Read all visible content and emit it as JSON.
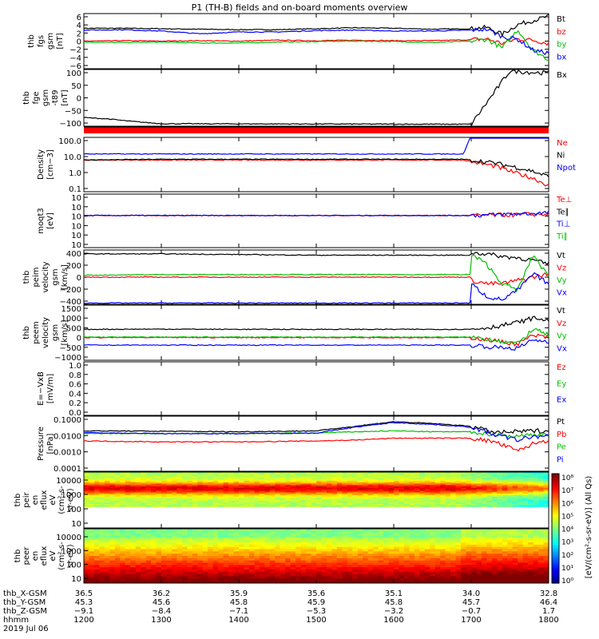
{
  "title": "P1 (TH-B) fields and on-board moments overview",
  "chart_data": [
    {
      "type": "line",
      "ylabel": [
        "thb",
        "fgs",
        "gsm",
        "[nT]"
      ],
      "yticks": [
        "6",
        "4",
        "2",
        "0",
        "−2",
        "−4",
        "−6"
      ],
      "ylim": [
        -6,
        6
      ],
      "legend": [
        {
          "name": "Bt",
          "color": "#000000"
        },
        {
          "name": "bz",
          "color": "#ff0000"
        },
        {
          "name": "by",
          "color": "#00c000"
        },
        {
          "name": "bx",
          "color": "#0000ff"
        }
      ],
      "x": [
        0,
        0.5,
        1,
        1.5,
        2,
        2.5,
        3,
        3.5,
        4,
        4.5,
        5,
        5.2,
        5.4,
        5.6,
        5.8,
        6
      ],
      "series": [
        {
          "name": "Bt",
          "values": [
            2.8,
            2.8,
            2.7,
            2.6,
            2.5,
            2.5,
            2.7,
            2.9,
            2.8,
            2.6,
            2.7,
            3.0,
            1.5,
            3.6,
            4.5,
            5.4
          ]
        },
        {
          "name": "bz",
          "values": [
            0.0,
            0.1,
            0.0,
            0.1,
            0.0,
            0.2,
            0.1,
            0.2,
            0.1,
            0.1,
            0.3,
            0.5,
            -0.5,
            0.5,
            0.2,
            -0.5
          ]
        },
        {
          "name": "by",
          "values": [
            -0.2,
            -0.3,
            -0.2,
            -0.4,
            -0.4,
            -0.2,
            -0.1,
            0.0,
            -0.1,
            -0.3,
            0.0,
            0.4,
            -1.5,
            2.5,
            -2.0,
            -4.0
          ]
        },
        {
          "name": "bx",
          "values": [
            2.4,
            2.5,
            2.2,
            1.6,
            2.0,
            2.0,
            2.3,
            2.4,
            2.2,
            2.2,
            2.4,
            2.6,
            1.0,
            0.4,
            -2.0,
            -2.6
          ]
        }
      ]
    },
    {
      "type": "line",
      "ylabel": [
        "thb",
        "fge",
        "gsm",
        "-t89",
        "[nT]"
      ],
      "yticks": [
        "100",
        "50",
        "0",
        "−50",
        "−100"
      ],
      "ylim": [
        -130,
        100
      ],
      "legend": [
        {
          "name": "Bx",
          "color": "#000000"
        }
      ],
      "x": [
        0,
        0.3,
        0.6,
        1.0,
        5.0,
        5.5,
        5.8,
        6
      ],
      "series": [
        {
          "name": "Bx",
          "values": [
            -95,
            -100,
            -110,
            -120,
            -122,
            95,
            88,
            86
          ]
        }
      ]
    },
    {
      "type": "line",
      "ylabel": [
        "Density",
        "[cm−3]"
      ],
      "yticks": [
        "100.0",
        "10.0",
        "1.0",
        "0.1"
      ],
      "ylim": [
        -1.3,
        2.3
      ],
      "scale": "log",
      "legend": [
        {
          "name": "Ne",
          "color": "#ff0000"
        },
        {
          "name": "Ni",
          "color": "#000000"
        },
        {
          "name": "Npot",
          "color": "#0000ff"
        },
        {
          "name": "",
          "color": "#000000"
        }
      ],
      "x": [
        0,
        1,
        2,
        3,
        4,
        4.9,
        5.0,
        5.3,
        5.6,
        5.8,
        6
      ],
      "series": [
        {
          "name": "Ne",
          "values": [
            0.8,
            0.8,
            0.8,
            0.8,
            0.8,
            0.8,
            0.7,
            0.4,
            -0.1,
            -0.4,
            -0.9
          ]
        },
        {
          "name": "Ni",
          "values": [
            0.8,
            0.85,
            0.85,
            0.85,
            0.85,
            0.85,
            0.8,
            0.6,
            0.3,
            0.05,
            -0.3
          ]
        },
        {
          "name": "Npot",
          "values": [
            1.2,
            1.2,
            1.2,
            1.2,
            1.2,
            1.2,
            2.5,
            2.5,
            2.5,
            2.5,
            2.5
          ]
        }
      ]
    },
    {
      "type": "line",
      "ylabel": [
        "moqt3",
        "[eV]"
      ],
      "yticks": [
        "10",
        "10",
        "10",
        "10",
        "10",
        "10"
      ],
      "ylim": [
        -1,
        1
      ],
      "legend": [
        {
          "name": "Te⊥",
          "color": "#ff0000"
        },
        {
          "name": "Te∥",
          "color": "#000000"
        },
        {
          "name": "Ti⊥",
          "color": "#0000ff"
        },
        {
          "name": "Ti∥",
          "color": "#00c000"
        }
      ],
      "x": [
        0,
        1,
        2,
        3,
        4,
        5,
        6
      ],
      "series": [
        {
          "name": "Te⊥",
          "values": [
            0.2,
            0.2,
            0.2,
            0.2,
            0.2,
            0.2,
            0.25
          ]
        },
        {
          "name": "Ti⊥",
          "values": [
            0.2,
            0.2,
            0.2,
            0.2,
            0.2,
            0.2,
            0.3
          ]
        }
      ]
    },
    {
      "type": "line",
      "ylabel": [
        "thb",
        "peim",
        "velocity",
        "gsm",
        "[km/s]"
      ],
      "yticks": [
        "400",
        "200",
        "0",
        "−200",
        "−400"
      ],
      "ylim": [
        -420,
        420
      ],
      "legend": [
        {
          "name": "Vt",
          "color": "#000000"
        },
        {
          "name": "Vz",
          "color": "#ff0000"
        },
        {
          "name": "Vy",
          "color": "#00c000"
        },
        {
          "name": "Vx",
          "color": "#0000ff"
        }
      ],
      "x": [
        0,
        1,
        2,
        3,
        4,
        4.99,
        5.0,
        5.2,
        5.4,
        5.6,
        5.8,
        6
      ],
      "series": [
        {
          "name": "Vt",
          "values": [
            360,
            360,
            350,
            340,
            340,
            340,
            380,
            360,
            320,
            300,
            260,
            200
          ]
        },
        {
          "name": "Vz",
          "values": [
            0,
            0,
            0,
            0,
            0,
            0,
            -50,
            -100,
            -100,
            -50,
            0,
            50
          ]
        },
        {
          "name": "Vy",
          "values": [
            30,
            40,
            40,
            40,
            40,
            40,
            350,
            200,
            -100,
            -200,
            350,
            0
          ]
        },
        {
          "name": "Vx",
          "values": [
            -400,
            -400,
            -400,
            -400,
            -400,
            -400,
            -100,
            -300,
            -350,
            -200,
            50,
            -100
          ]
        }
      ]
    },
    {
      "type": "line",
      "ylabel": [
        "thb",
        "peem",
        "velocity",
        "gsm",
        "[km/s]"
      ],
      "yticks": [
        "1500",
        "1000",
        "500",
        "0",
        "−500",
        "−1000"
      ],
      "ylim": [
        -1050,
        1500
      ],
      "legend": [
        {
          "name": "Vt",
          "color": "#000000"
        },
        {
          "name": "Vz",
          "color": "#ff0000"
        },
        {
          "name": "Vy",
          "color": "#00c000"
        },
        {
          "name": "Vx",
          "color": "#0000ff"
        }
      ],
      "x": [
        0,
        1,
        2,
        3,
        4,
        5,
        5.3,
        5.6,
        5.8,
        6
      ],
      "series": [
        {
          "name": "Vt",
          "values": [
            380,
            390,
            380,
            380,
            380,
            380,
            500,
            700,
            900,
            800
          ]
        },
        {
          "name": "Vz",
          "values": [
            0,
            0,
            0,
            0,
            0,
            0,
            -150,
            -300,
            100,
            0
          ]
        },
        {
          "name": "Vy",
          "values": [
            20,
            20,
            20,
            20,
            20,
            20,
            -100,
            -300,
            400,
            100
          ]
        },
        {
          "name": "Vx",
          "values": [
            -350,
            -350,
            -350,
            -350,
            -350,
            -350,
            -450,
            -500,
            -100,
            -200
          ]
        }
      ]
    },
    {
      "type": "line",
      "ylabel": [
        "E=−VxB",
        "[mV/m]"
      ],
      "yticks": [
        "1.0",
        "0.8",
        "0.6",
        "0.4",
        "0.2",
        "0.0"
      ],
      "ylim": [
        0,
        1
      ],
      "legend": [
        {
          "name": "Ez",
          "color": "#ff0000"
        },
        {
          "name": "Ey",
          "color": "#00c000"
        },
        {
          "name": "Ex",
          "color": "#0000ff"
        }
      ],
      "x": [],
      "series": []
    },
    {
      "type": "line",
      "ylabel": [
        "Pressure",
        "[nPa]"
      ],
      "yticks": [
        "0.1000",
        "0.0100",
        "0.0010",
        "0.0001"
      ],
      "ylim": [
        -4,
        -1
      ],
      "scale": "log",
      "legend": [
        {
          "name": "Pt",
          "color": "#000000"
        },
        {
          "name": "Pb",
          "color": "#ff0000"
        },
        {
          "name": "Pe",
          "color": "#00c000"
        },
        {
          "name": "Pi",
          "color": "#0000ff"
        }
      ],
      "x": [
        0,
        1,
        2,
        3,
        3.5,
        4,
        4.5,
        5,
        5.3,
        5.6,
        5.8,
        6
      ],
      "series": [
        {
          "name": "Pt",
          "values": [
            -1.8,
            -1.82,
            -1.85,
            -1.8,
            -1.55,
            -1.3,
            -1.4,
            -1.55,
            -1.9,
            -1.85,
            -1.8,
            -1.8
          ]
        },
        {
          "name": "Pb",
          "values": [
            -2.35,
            -2.4,
            -2.4,
            -2.35,
            -2.3,
            -2.2,
            -2.2,
            -2.2,
            -2.4,
            -2.9,
            -2.5,
            -2.3
          ]
        },
        {
          "name": "Pe",
          "values": [
            -1.95,
            -1.95,
            -1.95,
            -1.92,
            -1.85,
            -1.8,
            -1.85,
            -1.85,
            -2.0,
            -2.1,
            -2.0,
            -2.0
          ]
        },
        {
          "name": "Pi",
          "values": [
            -1.9,
            -1.95,
            -1.95,
            -1.92,
            -1.6,
            -1.35,
            -1.45,
            -1.6,
            -2.0,
            -2.3,
            -2.1,
            -2.1
          ]
        }
      ]
    },
    {
      "type": "heatmap",
      "ylabel": [
        "thb",
        "peir",
        "en",
        "eflux",
        "eV",
        "(cm²-s-",
        "sr-eV)"
      ],
      "yticks": [
        "10000",
        "1000",
        "100",
        "10"
      ],
      "scale": "log"
    },
    {
      "type": "heatmap",
      "ylabel": [
        "thb",
        "peer",
        "en",
        "eflux",
        "eV",
        "(cm²-s-",
        "sr-eV)"
      ],
      "yticks": [
        "10000",
        "1000",
        "100",
        "10"
      ],
      "scale": "log"
    }
  ],
  "colorbar_label": "[eV/(cm²-s-sr-eV)] (All Qs)",
  "colorbar_ticks": [
    "10⁸",
    "10⁷",
    "10⁶",
    "10⁵",
    "10⁴",
    "10³",
    "10²",
    "10¹",
    "10⁰"
  ],
  "x_rows": [
    {
      "label": "thb_X-GSM",
      "values": [
        "36.5",
        "36.2",
        "35.9",
        "35.6",
        "35.1",
        "34.0",
        "32.8"
      ]
    },
    {
      "label": "thb_Y-GSM",
      "values": [
        "45.3",
        "45.6",
        "45.8",
        "45.9",
        "45.8",
        "45.7",
        "46.4"
      ]
    },
    {
      "label": "thb_Z-GSM",
      "values": [
        "−9.1",
        "−8.4",
        "−7.1",
        "−5.3",
        "−3.2",
        "−0.7",
        "1.7"
      ]
    },
    {
      "label": "hhmm",
      "values": [
        "1200",
        "1300",
        "1400",
        "1500",
        "1600",
        "1700",
        "1800"
      ]
    }
  ],
  "date": "2019 Jul 06"
}
